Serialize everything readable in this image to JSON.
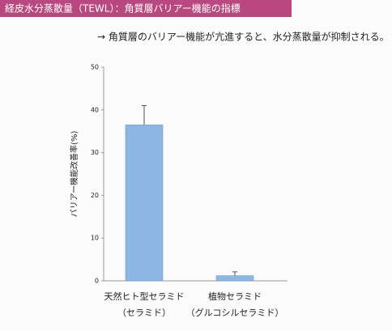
{
  "chart_data": {
    "type": "bar",
    "title": "経皮水分蒸散量（TEWL）：角質層バリアー機能の指標",
    "subtitle": "→ 角質層のバリアー機能が亢進すると、水分蒸散量が抑制される。",
    "y_label": "バリアー機能改善率(%)",
    "categories": [
      "天然ヒト型セラミド",
      "植物セラミド"
    ],
    "category_notes": [
      "（セラミド）",
      "（グルコシルセラミド）"
    ],
    "values": [
      36.5,
      1.2
    ],
    "errors": [
      4.5,
      0.9
    ],
    "color": "#8db7e2",
    "ylim": [
      0,
      50
    ],
    "yticks": [
      0,
      10,
      20,
      30,
      40,
      50
    ],
    "grid": false
  }
}
